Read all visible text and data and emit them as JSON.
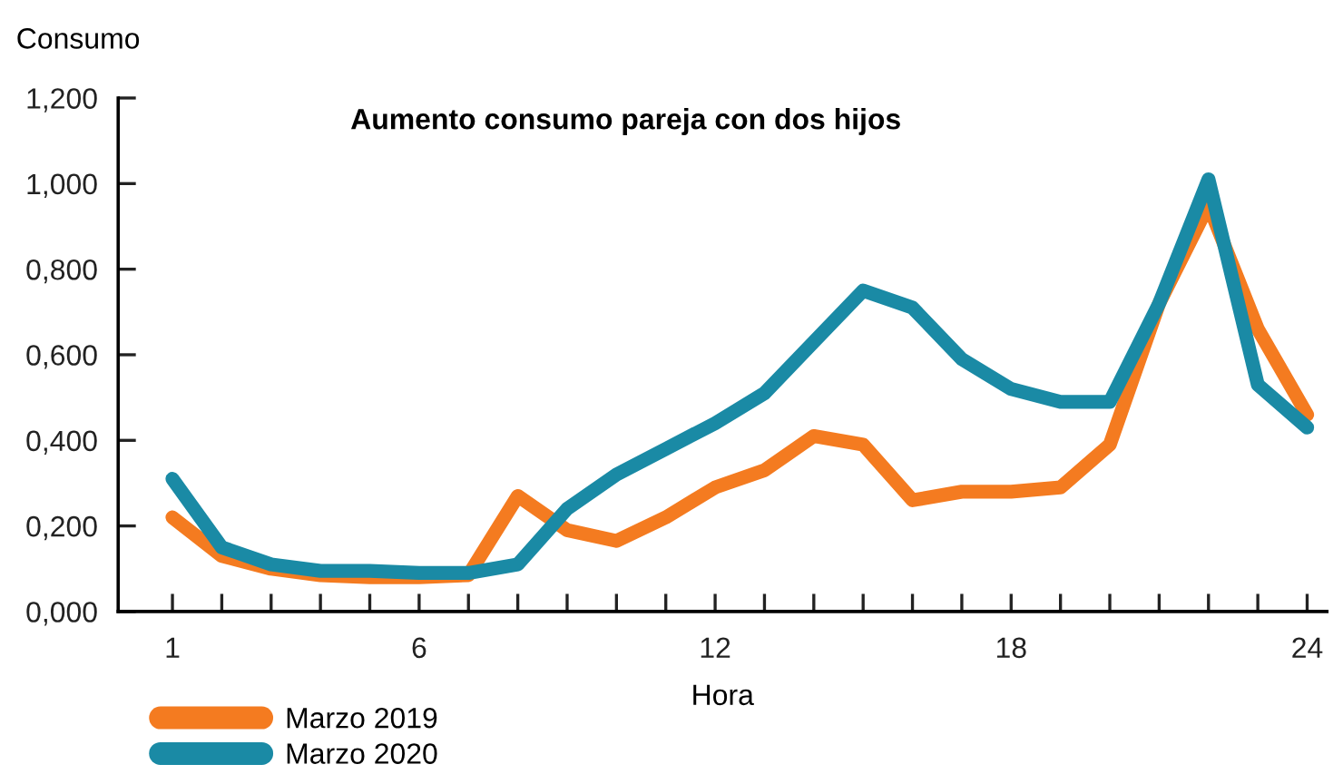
{
  "chart_data": {
    "type": "line",
    "title": "Aumento consumo pareja con dos hijos",
    "xlabel": "Hora",
    "ylabel": "Consumo",
    "x": [
      1,
      2,
      3,
      4,
      5,
      6,
      7,
      8,
      9,
      10,
      11,
      12,
      13,
      14,
      15,
      16,
      17,
      18,
      19,
      20,
      21,
      22,
      23,
      24
    ],
    "series": [
      {
        "name": "Marzo 2019",
        "color": "#f47b20",
        "values": [
          0.22,
          0.13,
          0.1,
          0.085,
          0.08,
          0.08,
          0.085,
          0.27,
          0.19,
          0.165,
          0.22,
          0.29,
          0.33,
          0.41,
          0.39,
          0.26,
          0.28,
          0.28,
          0.29,
          0.39,
          0.72,
          0.95,
          0.66,
          0.46
        ]
      },
      {
        "name": "Marzo 2020",
        "color": "#1a8aa5",
        "values": [
          0.31,
          0.15,
          0.11,
          0.095,
          0.095,
          0.09,
          0.09,
          0.11,
          0.24,
          0.32,
          0.38,
          0.44,
          0.51,
          0.63,
          0.75,
          0.71,
          0.59,
          0.52,
          0.49,
          0.49,
          0.72,
          1.01,
          0.53,
          0.43
        ]
      }
    ],
    "xlim": [
      -0.1,
      24.4
    ],
    "ylim": [
      0,
      1.2
    ],
    "xticks": [
      1,
      {
        "value": 2,
        "label": null
      },
      {
        "value": 3,
        "label": null
      },
      {
        "value": 4,
        "label": null
      },
      {
        "value": 5,
        "label": null
      },
      6,
      {
        "value": 7,
        "label": null
      },
      {
        "value": 8,
        "label": null
      },
      {
        "value": 9,
        "label": null
      },
      {
        "value": 10,
        "label": null
      },
      {
        "value": 11,
        "label": null
      },
      12,
      {
        "value": 13,
        "label": null
      },
      {
        "value": 14,
        "label": null
      },
      {
        "value": 15,
        "label": null
      },
      {
        "value": 16,
        "label": null
      },
      {
        "value": 17,
        "label": null
      },
      18,
      {
        "value": 19,
        "label": null
      },
      {
        "value": 20,
        "label": null
      },
      {
        "value": 21,
        "label": null
      },
      {
        "value": 22,
        "label": null
      },
      {
        "value": 23,
        "label": null
      },
      24
    ],
    "yticks": [
      {
        "value": 0,
        "label": "0,000"
      },
      {
        "value": 0.2,
        "label": "0,200"
      },
      {
        "value": 0.4,
        "label": "0,400"
      },
      {
        "value": 0.6,
        "label": "0,600"
      },
      {
        "value": 0.8,
        "label": "0,800"
      },
      {
        "value": 1.0,
        "label": "1,000"
      },
      {
        "value": 1.2,
        "label": "1,200"
      }
    ],
    "grid": false,
    "legend": "bottom left",
    "marker": "none",
    "line_style": "solid"
  }
}
